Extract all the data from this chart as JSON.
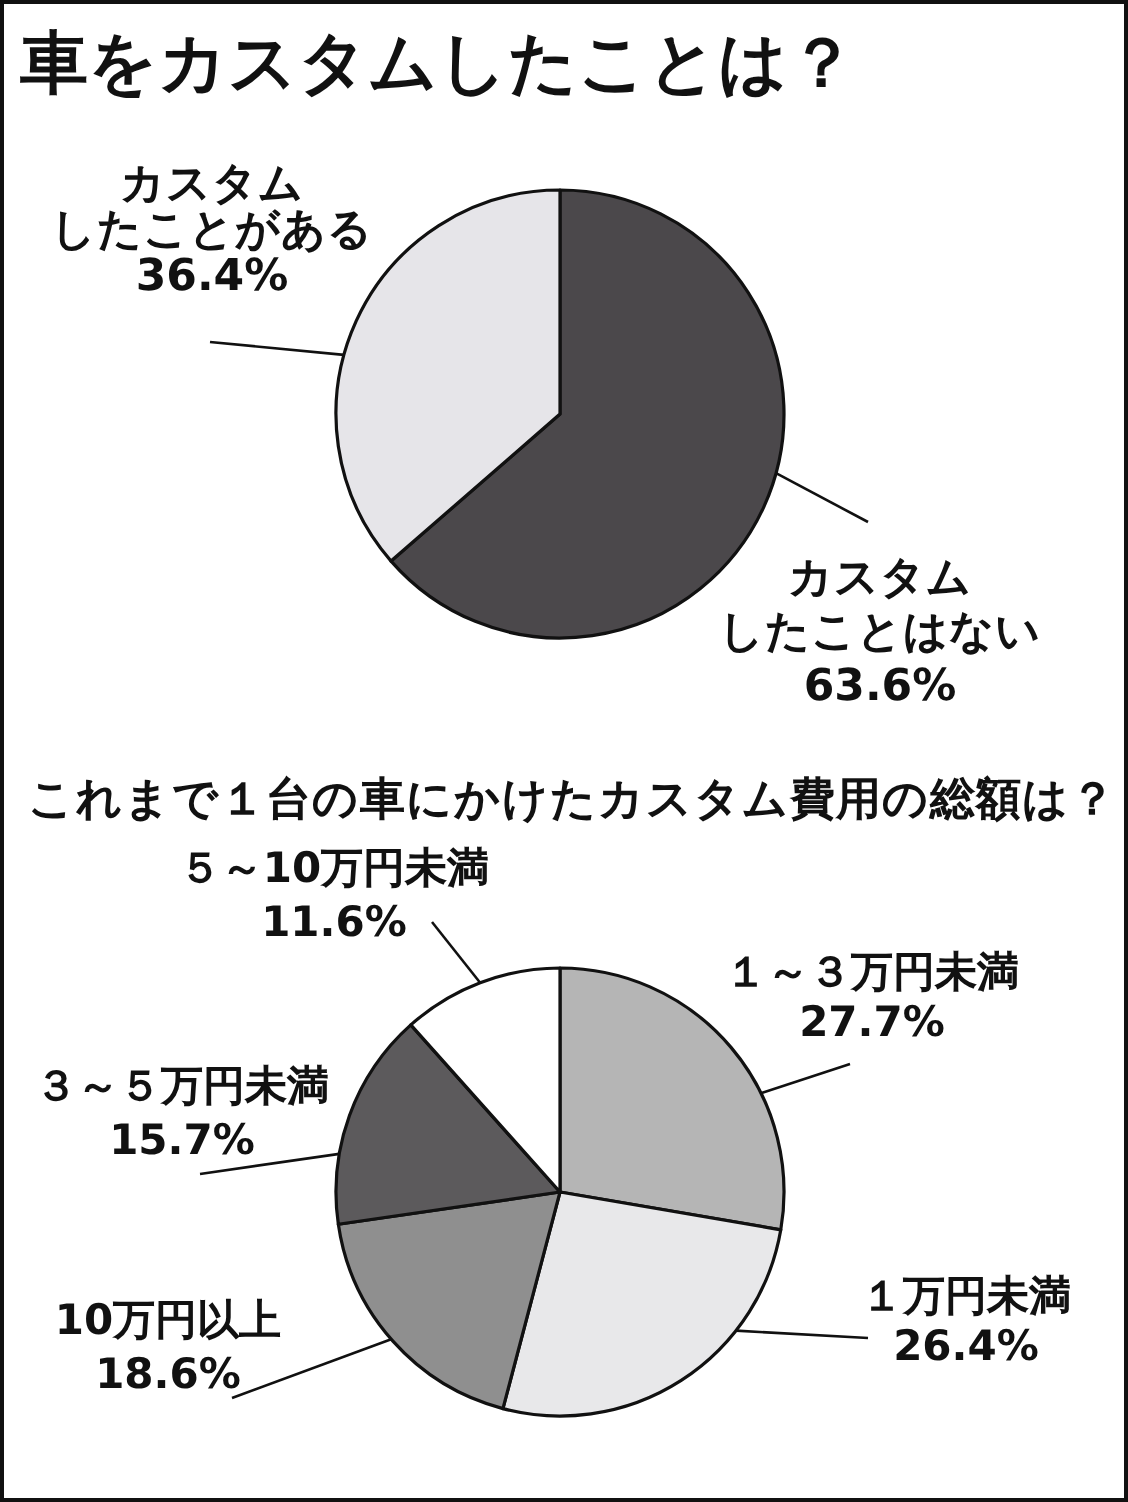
{
  "chart_data": [
    {
      "type": "pie",
      "title": "車をカスタムしたことは？",
      "categories": [
        "カスタムしたことはない",
        "カスタムしたことがある"
      ],
      "values": [
        63.6,
        36.4
      ],
      "colors": [
        "#4b484b",
        "#e6e5e9"
      ],
      "value_labels": [
        "63.6%",
        "36.4%"
      ]
    },
    {
      "type": "pie",
      "title": "これまで１台の車にかけたカスタム費用の総額は？",
      "categories": [
        "１～３万円未満",
        "１万円未満",
        "10万円以上",
        "３～５万円未満",
        "５～10万円未満"
      ],
      "values": [
        27.7,
        26.4,
        18.6,
        15.7,
        11.6
      ],
      "colors": [
        "#b5b5b5",
        "#e8e8ea",
        "#8f8f8f",
        "#5c5a5c",
        "#ffffff"
      ],
      "value_labels": [
        "27.7%",
        "26.4%",
        "18.6%",
        "15.7%",
        "11.6%"
      ]
    }
  ]
}
